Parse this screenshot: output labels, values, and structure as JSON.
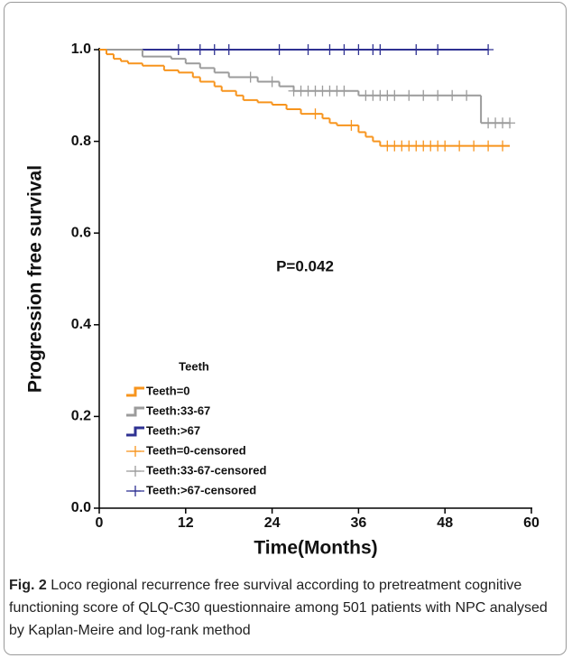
{
  "chart_data": {
    "type": "step",
    "ylabel": "Progression free survival",
    "xlabel": "Time(Months)",
    "xlim": [
      0,
      60
    ],
    "xticks": [
      0,
      12,
      24,
      36,
      48,
      60
    ],
    "ylim": [
      0,
      1
    ],
    "yticks": [
      {
        "value": 0,
        "label": "0.0"
      },
      0.2,
      0.4,
      0.6,
      0.8,
      {
        "value": 1,
        "label": "1.0"
      }
    ],
    "annotation": "P=0.042",
    "legend_title": "Teeth",
    "series": [
      {
        "name": "Teeth=0",
        "color": "#f7941d",
        "kind": "step",
        "x": [
          0,
          1,
          2,
          3,
          4,
          6,
          9,
          11,
          13,
          14,
          16,
          17,
          19,
          20,
          22,
          24,
          26,
          28,
          31,
          32,
          33,
          36,
          37,
          38,
          39,
          57
        ],
        "values": [
          1,
          0.99,
          0.98,
          0.975,
          0.97,
          0.965,
          0.955,
          0.95,
          0.94,
          0.93,
          0.92,
          0.91,
          0.9,
          0.89,
          0.885,
          0.88,
          0.87,
          0.86,
          0.85,
          0.84,
          0.835,
          0.82,
          0.81,
          0.8,
          0.79,
          0.79
        ]
      },
      {
        "name": "Teeth:33-67",
        "color": "#9b9b9b",
        "kind": "step",
        "x": [
          0,
          6,
          10,
          12,
          14,
          16,
          18,
          22,
          25,
          27,
          36,
          53,
          57
        ],
        "values": [
          1,
          0.985,
          0.98,
          0.97,
          0.96,
          0.95,
          0.94,
          0.93,
          0.92,
          0.91,
          0.9,
          0.84,
          0.84
        ]
      },
      {
        "name": "Teeth:>67",
        "color": "#2e3192",
        "kind": "step",
        "x": [
          0,
          54
        ],
        "values": [
          1,
          1
        ]
      },
      {
        "name": "Teeth=0-censored",
        "color": "#f7941d",
        "kind": "censor",
        "x": [
          30,
          35,
          40,
          41,
          42,
          43,
          44,
          45,
          46,
          47,
          48,
          50,
          52,
          54,
          56
        ],
        "values": [
          0.86,
          0.835,
          0.79,
          0.79,
          0.79,
          0.79,
          0.79,
          0.79,
          0.79,
          0.79,
          0.79,
          0.79,
          0.79,
          0.79,
          0.79
        ]
      },
      {
        "name": "Teeth:33-67-censored",
        "color": "#9b9b9b",
        "kind": "censor",
        "x": [
          21,
          24,
          27,
          28,
          29,
          30,
          31,
          32,
          33,
          34,
          37,
          38,
          39,
          40,
          41,
          43,
          45,
          47,
          49,
          51,
          54,
          55,
          56,
          57
        ],
        "values": [
          0.94,
          0.93,
          0.91,
          0.91,
          0.91,
          0.91,
          0.91,
          0.91,
          0.91,
          0.91,
          0.9,
          0.9,
          0.9,
          0.9,
          0.9,
          0.9,
          0.9,
          0.9,
          0.9,
          0.9,
          0.84,
          0.84,
          0.84,
          0.84
        ]
      },
      {
        "name": "Teeth:>67-censored",
        "color": "#2e3192",
        "kind": "censor",
        "x": [
          11,
          14,
          16,
          18,
          25,
          29,
          32,
          34,
          36,
          38,
          39,
          44,
          47,
          54
        ],
        "values": [
          1,
          1,
          1,
          1,
          1,
          1,
          1,
          1,
          1,
          1,
          1,
          1,
          1,
          1
        ]
      }
    ]
  },
  "caption": {
    "label": "Fig. 2",
    "text": "Loco regional recurrence free survival according to pretreatment cognitive functioning score of QLQ-C30 questionnaire among 501 patients with NPC analysed by Kaplan-Meire and log-rank method"
  }
}
